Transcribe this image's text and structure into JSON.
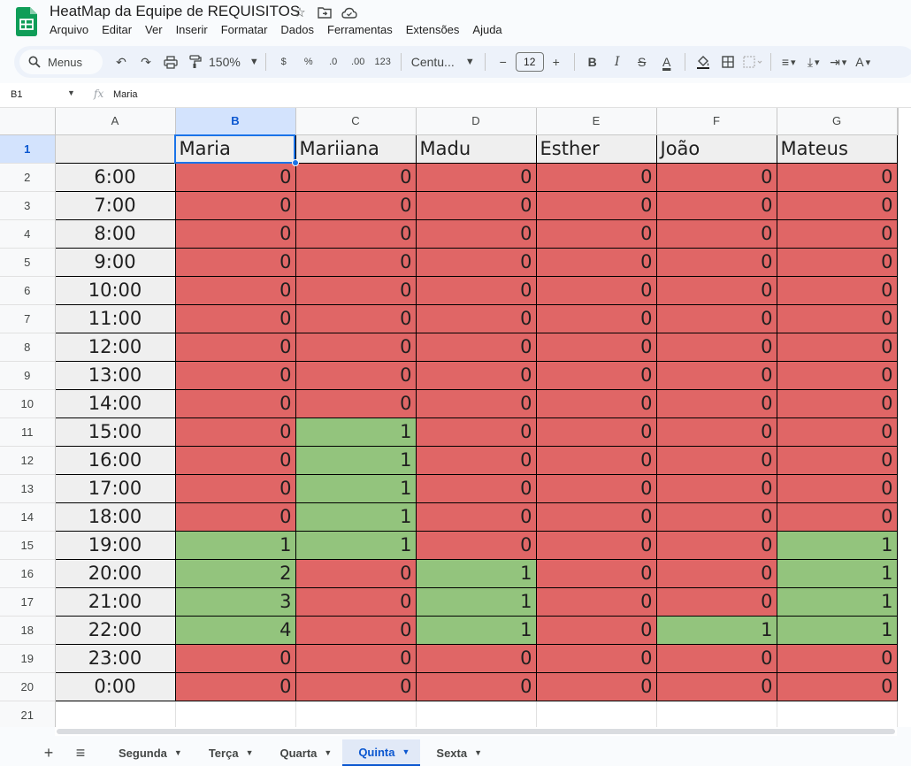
{
  "doc": {
    "title": "HeatMap da Equipe de REQUISITOS",
    "menu": [
      "Arquivo",
      "Editar",
      "Ver",
      "Inserir",
      "Formatar",
      "Dados",
      "Ferramentas",
      "Extensões",
      "Ajuda"
    ]
  },
  "toolbar": {
    "search_label": "Menus",
    "zoom": "150%",
    "currency": "$",
    "percent": "%",
    "dec_decrease": ".0",
    "dec_increase": ".00",
    "number_format": "123",
    "font": "Centu...",
    "font_size": "12"
  },
  "formula_bar": {
    "cell_ref": "B1",
    "fx": "fx",
    "value": "Maria"
  },
  "colors": {
    "red": "#e06666",
    "green": "#93c47d",
    "header_gray": "#efefef",
    "selection": "#1a73e8"
  },
  "grid": {
    "columns": [
      "A",
      "B",
      "C",
      "D",
      "E",
      "F",
      "G"
    ],
    "selected_column": "B",
    "selected_row": 1,
    "header_row": [
      "",
      "Maria",
      "Mariiana",
      "Madu",
      "Esther",
      "João",
      "Mateus"
    ],
    "rows": [
      {
        "n": "2",
        "time": "6:00",
        "values": [
          "0",
          "0",
          "0",
          "0",
          "0",
          "0"
        ]
      },
      {
        "n": "3",
        "time": "7:00",
        "values": [
          "0",
          "0",
          "0",
          "0",
          "0",
          "0"
        ]
      },
      {
        "n": "4",
        "time": "8:00",
        "values": [
          "0",
          "0",
          "0",
          "0",
          "0",
          "0"
        ]
      },
      {
        "n": "5",
        "time": "9:00",
        "values": [
          "0",
          "0",
          "0",
          "0",
          "0",
          "0"
        ]
      },
      {
        "n": "6",
        "time": "10:00",
        "values": [
          "0",
          "0",
          "0",
          "0",
          "0",
          "0"
        ]
      },
      {
        "n": "7",
        "time": "11:00",
        "values": [
          "0",
          "0",
          "0",
          "0",
          "0",
          "0"
        ]
      },
      {
        "n": "8",
        "time": "12:00",
        "values": [
          "0",
          "0",
          "0",
          "0",
          "0",
          "0"
        ]
      },
      {
        "n": "9",
        "time": "13:00",
        "values": [
          "0",
          "0",
          "0",
          "0",
          "0",
          "0"
        ]
      },
      {
        "n": "10",
        "time": "14:00",
        "values": [
          "0",
          "0",
          "0",
          "0",
          "0",
          "0"
        ]
      },
      {
        "n": "11",
        "time": "15:00",
        "values": [
          "0",
          "1",
          "0",
          "0",
          "0",
          "0"
        ]
      },
      {
        "n": "12",
        "time": "16:00",
        "values": [
          "0",
          "1",
          "0",
          "0",
          "0",
          "0"
        ]
      },
      {
        "n": "13",
        "time": "17:00",
        "values": [
          "0",
          "1",
          "0",
          "0",
          "0",
          "0"
        ]
      },
      {
        "n": "14",
        "time": "18:00",
        "values": [
          "0",
          "1",
          "0",
          "0",
          "0",
          "0"
        ]
      },
      {
        "n": "15",
        "time": "19:00",
        "values": [
          "1",
          "1",
          "0",
          "0",
          "0",
          "1"
        ]
      },
      {
        "n": "16",
        "time": "20:00",
        "values": [
          "2",
          "0",
          "1",
          "0",
          "0",
          "1"
        ]
      },
      {
        "n": "17",
        "time": "21:00",
        "values": [
          "3",
          "0",
          "1",
          "0",
          "0",
          "1"
        ]
      },
      {
        "n": "18",
        "time": "22:00",
        "values": [
          "4",
          "0",
          "1",
          "0",
          "1",
          "1"
        ]
      },
      {
        "n": "19",
        "time": "23:00",
        "values": [
          "0",
          "0",
          "0",
          "0",
          "0",
          "0"
        ]
      },
      {
        "n": "20",
        "time": "0:00",
        "values": [
          "0",
          "0",
          "0",
          "0",
          "0",
          "0"
        ]
      }
    ],
    "extra_row": "21"
  },
  "sheets": [
    {
      "name": "Segunda",
      "active": false
    },
    {
      "name": "Terça",
      "active": false
    },
    {
      "name": "Quarta",
      "active": false
    },
    {
      "name": "Quinta",
      "active": true
    },
    {
      "name": "Sexta",
      "active": false
    }
  ]
}
